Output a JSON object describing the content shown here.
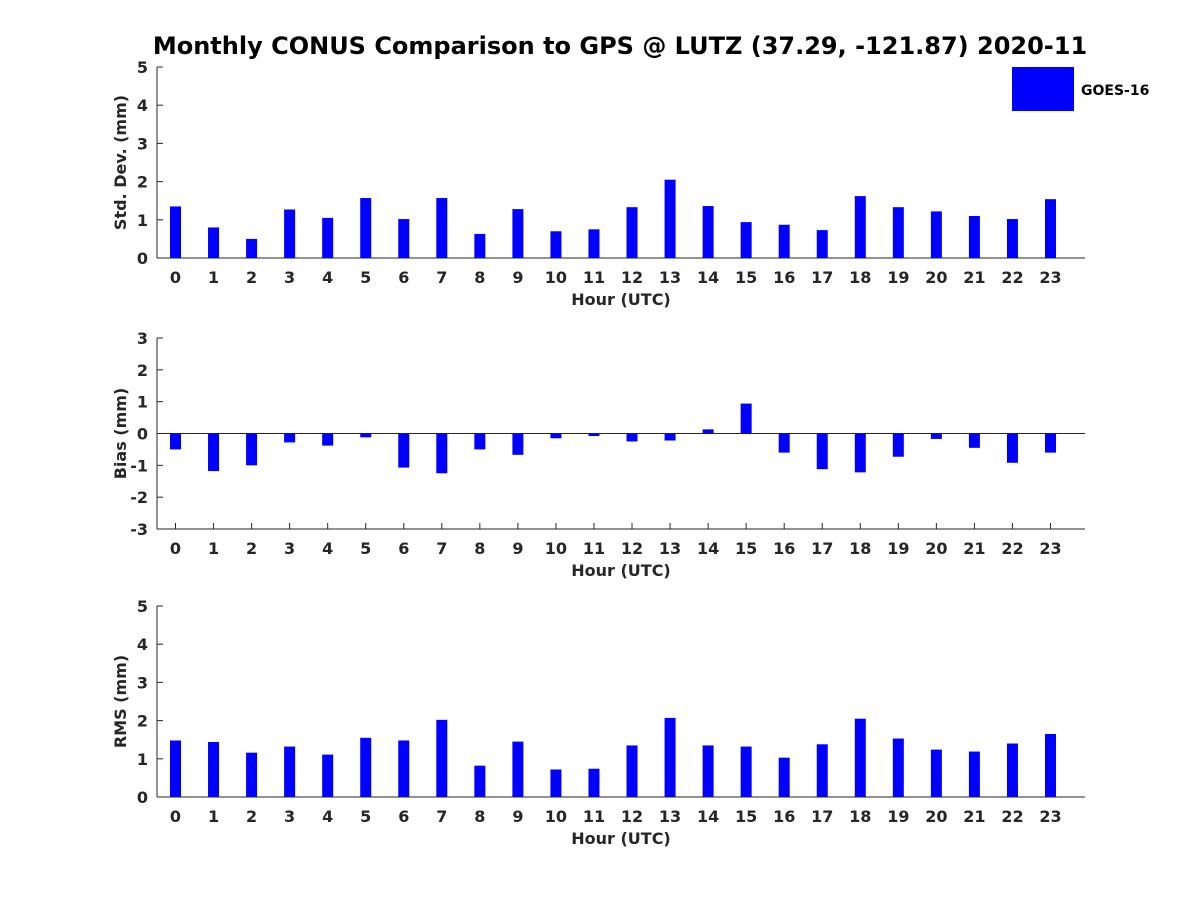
{
  "chart_data": [
    {
      "type": "bar",
      "title": "Monthly CONUS Comparison to GPS @ LUTZ (37.29, -121.87) 2020-11",
      "xlabel": "Hour (UTC)",
      "ylabel": "Std. Dev. (mm)",
      "ylim": [
        0,
        5
      ],
      "yticks": [
        "0",
        "1",
        "2",
        "3",
        "4",
        "5"
      ],
      "categories": [
        "0",
        "1",
        "2",
        "3",
        "4",
        "5",
        "6",
        "7",
        "8",
        "9",
        "10",
        "11",
        "12",
        "13",
        "14",
        "15",
        "16",
        "17",
        "18",
        "19",
        "20",
        "21",
        "22",
        "23"
      ],
      "series": [
        {
          "name": "GOES-16",
          "color": "#0000ff",
          "values": [
            1.35,
            0.8,
            0.5,
            1.27,
            1.05,
            1.57,
            1.02,
            1.57,
            0.63,
            1.28,
            0.7,
            0.75,
            1.33,
            2.05,
            1.36,
            0.94,
            0.87,
            0.73,
            1.62,
            1.33,
            1.22,
            1.1,
            1.02,
            1.54
          ]
        }
      ]
    },
    {
      "type": "bar",
      "xlabel": "Hour (UTC)",
      "ylabel": "Bias (mm)",
      "ylim": [
        -3,
        3
      ],
      "yticks": [
        "-3",
        "-2",
        "-1",
        "0",
        "1",
        "2",
        "3"
      ],
      "categories": [
        "0",
        "1",
        "2",
        "3",
        "4",
        "5",
        "6",
        "7",
        "8",
        "9",
        "10",
        "11",
        "12",
        "13",
        "14",
        "15",
        "16",
        "17",
        "18",
        "19",
        "20",
        "21",
        "22",
        "23"
      ],
      "series": [
        {
          "name": "GOES-16",
          "color": "#0000ff",
          "values": [
            -0.5,
            -1.18,
            -1.0,
            -0.28,
            -0.38,
            -0.12,
            -1.07,
            -1.25,
            -0.5,
            -0.67,
            -0.15,
            -0.08,
            -0.25,
            -0.22,
            0.13,
            0.94,
            -0.6,
            -1.12,
            -1.22,
            -0.73,
            -0.17,
            -0.45,
            -0.92,
            -0.6
          ]
        }
      ]
    },
    {
      "type": "bar",
      "xlabel": "Hour (UTC)",
      "ylabel": "RMS (mm)",
      "ylim": [
        0,
        5
      ],
      "yticks": [
        "0",
        "1",
        "2",
        "3",
        "4",
        "5"
      ],
      "categories": [
        "0",
        "1",
        "2",
        "3",
        "4",
        "5",
        "6",
        "7",
        "8",
        "9",
        "10",
        "11",
        "12",
        "13",
        "14",
        "15",
        "16",
        "17",
        "18",
        "19",
        "20",
        "21",
        "22",
        "23"
      ],
      "series": [
        {
          "name": "GOES-16",
          "color": "#0000ff",
          "values": [
            1.48,
            1.44,
            1.16,
            1.32,
            1.11,
            1.55,
            1.48,
            2.02,
            0.82,
            1.45,
            0.72,
            0.74,
            1.35,
            2.07,
            1.35,
            1.32,
            1.03,
            1.38,
            2.05,
            1.53,
            1.24,
            1.19,
            1.4,
            1.65
          ]
        }
      ]
    }
  ],
  "legend": {
    "label": "GOES-16",
    "color": "#0000ff",
    "placement": "top-right"
  }
}
